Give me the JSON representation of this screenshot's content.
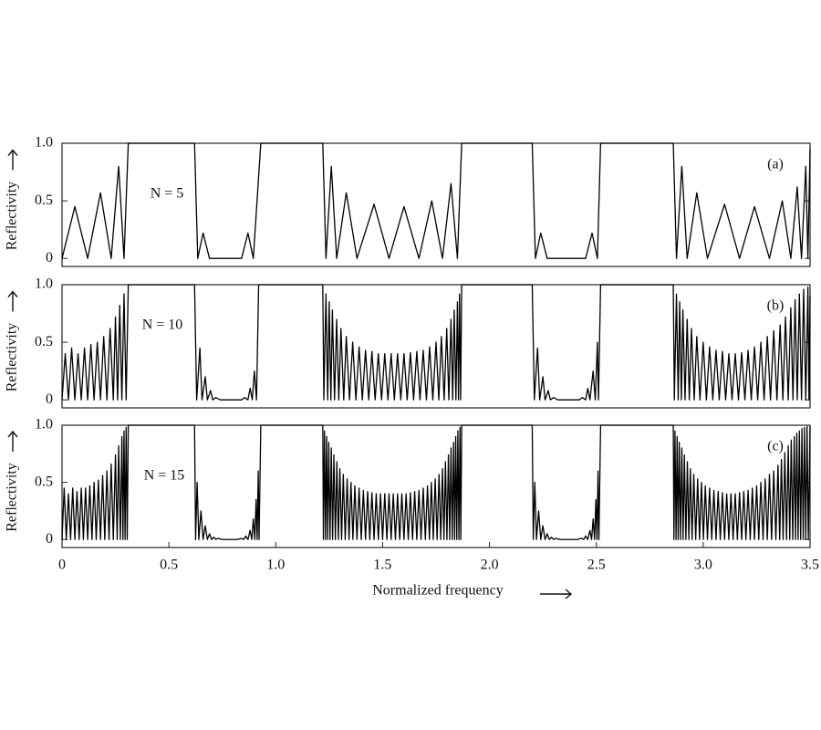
{
  "chart_data": [
    {
      "type": "line",
      "panel_label": "(a)",
      "annotation": "N = 5",
      "ylabel": "Reflectivity",
      "color": "#000000",
      "xlim": [
        0,
        3.5
      ],
      "ylim": [
        -0.07,
        1
      ],
      "yticks": [
        0,
        0.5,
        {
          "value": 1,
          "label": "1.0"
        }
      ],
      "x": [
        0,
        0.06,
        0.12,
        0.18,
        0.23,
        0.265,
        0.29,
        0.31,
        0.62,
        0.635,
        0.66,
        0.69,
        0.84,
        0.87,
        0.895,
        0.93,
        1.22,
        1.235,
        1.26,
        1.285,
        1.33,
        1.38,
        1.46,
        1.53,
        1.6,
        1.67,
        1.73,
        1.78,
        1.82,
        1.85,
        1.87,
        2.2,
        2.215,
        2.24,
        2.27,
        2.45,
        2.48,
        2.505,
        2.52,
        2.86,
        2.875,
        2.9,
        2.925,
        2.97,
        3.02,
        3.1,
        3.17,
        3.24,
        3.31,
        3.37,
        3.41,
        3.44,
        3.46,
        3.48,
        3.49,
        3.5
      ],
      "values": [
        0,
        0.45,
        0,
        0.57,
        0,
        0.8,
        0,
        1,
        1,
        0,
        0.22,
        0,
        0,
        0.22,
        0,
        1,
        1,
        0,
        0.8,
        0,
        0.57,
        0,
        0.47,
        0,
        0.45,
        0,
        0.5,
        0,
        0.65,
        0,
        1,
        1,
        0,
        0.22,
        0,
        0,
        0.22,
        0,
        1,
        1,
        0,
        0.8,
        0,
        0.57,
        0,
        0.47,
        0,
        0.45,
        0,
        0.5,
        0,
        0.62,
        0,
        0.8,
        0,
        0.95
      ]
    },
    {
      "type": "line",
      "panel_label": "(b)",
      "annotation": "N = 10",
      "ylabel": "Reflectivity",
      "color": "#000000",
      "xlim": [
        0,
        3.5
      ],
      "ylim": [
        -0.07,
        1
      ],
      "yticks": [
        0,
        0.5,
        {
          "value": 1,
          "label": "1.0"
        }
      ],
      "x": [
        0,
        0.015,
        0.03,
        0.045,
        0.06,
        0.075,
        0.09,
        0.105,
        0.12,
        0.135,
        0.15,
        0.165,
        0.18,
        0.195,
        0.21,
        0.225,
        0.24,
        0.25,
        0.26,
        0.27,
        0.28,
        0.29,
        0.3,
        0.31,
        0.62,
        0.63,
        0.645,
        0.655,
        0.67,
        0.68,
        0.695,
        0.705,
        0.72,
        0.74,
        0.84,
        0.855,
        0.87,
        0.88,
        0.89,
        0.9,
        0.91,
        0.92,
        1.22,
        1.225,
        1.235,
        1.243,
        1.25,
        1.258,
        1.265,
        1.275,
        1.285,
        1.295,
        1.305,
        1.318,
        1.33,
        1.345,
        1.36,
        1.375,
        1.39,
        1.405,
        1.42,
        1.435,
        1.45,
        1.465,
        1.48,
        1.495,
        1.51,
        1.525,
        1.54,
        1.555,
        1.57,
        1.585,
        1.6,
        1.615,
        1.63,
        1.645,
        1.66,
        1.675,
        1.69,
        1.705,
        1.72,
        1.735,
        1.75,
        1.763,
        1.775,
        1.788,
        1.8,
        1.81,
        1.82,
        1.828,
        1.835,
        1.843,
        1.85,
        1.855,
        1.86,
        1.865,
        1.87,
        2.2,
        2.21,
        2.225,
        2.235,
        2.25,
        2.26,
        2.275,
        2.285,
        2.3,
        2.32,
        2.42,
        2.435,
        2.45,
        2.46,
        2.47,
        2.485,
        2.495,
        2.505,
        2.51,
        2.52,
        2.86,
        2.865,
        2.875,
        2.883,
        2.89,
        2.898,
        2.905,
        2.915,
        2.925,
        2.935,
        2.945,
        2.958,
        2.97,
        2.985,
        3.0,
        3.015,
        3.03,
        3.045,
        3.06,
        3.075,
        3.09,
        3.105,
        3.12,
        3.135,
        3.15,
        3.165,
        3.18,
        3.195,
        3.21,
        3.225,
        3.24,
        3.255,
        3.27,
        3.285,
        3.3,
        3.315,
        3.33,
        3.345,
        3.36,
        3.373,
        3.385,
        3.398,
        3.41,
        3.42,
        3.43,
        3.44,
        3.45,
        3.46,
        3.47,
        3.48,
        3.49,
        3.495,
        3.5
      ],
      "values": [
        0,
        0.4,
        0,
        0.45,
        0,
        0.4,
        0,
        0.45,
        0,
        0.48,
        0,
        0.5,
        0,
        0.55,
        0,
        0.62,
        0,
        0.72,
        0,
        0.82,
        0,
        0.92,
        0,
        1,
        1,
        0,
        0.45,
        0,
        0.2,
        0,
        0.08,
        0,
        0.02,
        0,
        0,
        0.02,
        0,
        0.1,
        0,
        0.25,
        0,
        1,
        1,
        0,
        0.92,
        0,
        0.85,
        0,
        0.78,
        0,
        0.7,
        0,
        0.62,
        0,
        0.55,
        0,
        0.5,
        0,
        0.46,
        0,
        0.43,
        0,
        0.42,
        0,
        0.4,
        0,
        0.4,
        0,
        0.4,
        0,
        0.4,
        0,
        0.4,
        0,
        0.41,
        0,
        0.42,
        0,
        0.43,
        0,
        0.46,
        0,
        0.5,
        0,
        0.55,
        0,
        0.62,
        0,
        0.7,
        0,
        0.78,
        0,
        0.85,
        0,
        0.92,
        0,
        1,
        1,
        0,
        0.45,
        0,
        0.2,
        0,
        0.08,
        0,
        0.02,
        0,
        0,
        0.02,
        0,
        0.1,
        0,
        0.25,
        0,
        0.5,
        0,
        1,
        1,
        0,
        0.92,
        0,
        0.85,
        0,
        0.78,
        0,
        0.7,
        0,
        0.62,
        0,
        0.55,
        0,
        0.5,
        0,
        0.46,
        0,
        0.43,
        0,
        0.42,
        0,
        0.4,
        0,
        0.4,
        0,
        0.41,
        0,
        0.43,
        0,
        0.46,
        0,
        0.5,
        0,
        0.55,
        0,
        0.6,
        0,
        0.65,
        0,
        0.72,
        0,
        0.8,
        0,
        0.87,
        0,
        0.92,
        0,
        0.96,
        0,
        0.98,
        0,
        0.9
      ]
    },
    {
      "type": "line",
      "panel_label": "(c)",
      "annotation": "N = 15",
      "ylabel": "Reflectivity",
      "color": "#000000",
      "xlabel": "Normalized frequency",
      "xlim": [
        0,
        3.5
      ],
      "ylim": [
        -0.07,
        1
      ],
      "yticks": [
        0,
        0.5,
        {
          "value": 1,
          "label": "1.0"
        }
      ],
      "xticks": [
        0,
        0.5,
        {
          "value": 1,
          "label": "1.0"
        },
        1.5,
        {
          "value": 2,
          "label": "2.0"
        },
        2.5,
        {
          "value": 3,
          "label": "3.0"
        },
        3.5
      ],
      "x": [
        0,
        0.01,
        0.02,
        0.03,
        0.04,
        0.05,
        0.06,
        0.07,
        0.08,
        0.09,
        0.1,
        0.11,
        0.12,
        0.13,
        0.14,
        0.15,
        0.16,
        0.17,
        0.18,
        0.19,
        0.2,
        0.21,
        0.22,
        0.23,
        0.24,
        0.25,
        0.258,
        0.265,
        0.273,
        0.28,
        0.285,
        0.29,
        0.295,
        0.3,
        0.305,
        0.31,
        0.62,
        0.625,
        0.632,
        0.64,
        0.65,
        0.66,
        0.67,
        0.68,
        0.69,
        0.7,
        0.71,
        0.72,
        0.73,
        0.75,
        0.82,
        0.84,
        0.85,
        0.86,
        0.87,
        0.88,
        0.888,
        0.895,
        0.902,
        0.908,
        0.913,
        0.918,
        0.922,
        0.93,
        1.22,
        1.223,
        1.228,
        1.233,
        1.238,
        1.243,
        1.248,
        1.254,
        1.26,
        1.266,
        1.272,
        1.279,
        1.286,
        1.293,
        1.3,
        1.308,
        1.316,
        1.325,
        1.334,
        1.343,
        1.352,
        1.361,
        1.37,
        1.38,
        1.39,
        1.4,
        1.41,
        1.42,
        1.43,
        1.44,
        1.45,
        1.46,
        1.47,
        1.48,
        1.49,
        1.5,
        1.51,
        1.52,
        1.53,
        1.54,
        1.55,
        1.56,
        1.57,
        1.58,
        1.59,
        1.6,
        1.61,
        1.62,
        1.63,
        1.64,
        1.65,
        1.66,
        1.67,
        1.68,
        1.69,
        1.7,
        1.71,
        1.719,
        1.728,
        1.737,
        1.746,
        1.755,
        1.764,
        1.772,
        1.78,
        1.787,
        1.794,
        1.801,
        1.808,
        1.814,
        1.82,
        1.826,
        1.832,
        1.837,
        1.842,
        1.847,
        1.852,
        1.857,
        1.862,
        1.866,
        1.87,
        2.2,
        2.205,
        2.212,
        2.22,
        2.23,
        2.24,
        2.25,
        2.26,
        2.27,
        2.28,
        2.29,
        2.3,
        2.31,
        2.33,
        2.41,
        2.43,
        2.44,
        2.45,
        2.46,
        2.47,
        2.478,
        2.485,
        2.492,
        2.498,
        2.503,
        2.508,
        2.512,
        2.52,
        2.86,
        2.863,
        2.868,
        2.873,
        2.878,
        2.883,
        2.888,
        2.894,
        2.9,
        2.906,
        2.912,
        2.919,
        2.926,
        2.933,
        2.94,
        2.948,
        2.956,
        2.965,
        2.974,
        2.983,
        2.992,
        3.001,
        3.01,
        3.02,
        3.03,
        3.04,
        3.05,
        3.06,
        3.07,
        3.08,
        3.09,
        3.1,
        3.11,
        3.12,
        3.13,
        3.14,
        3.15,
        3.16,
        3.17,
        3.18,
        3.19,
        3.2,
        3.21,
        3.22,
        3.23,
        3.24,
        3.25,
        3.26,
        3.27,
        3.28,
        3.29,
        3.3,
        3.31,
        3.32,
        3.33,
        3.34,
        3.35,
        3.358,
        3.366,
        3.374,
        3.382,
        3.39,
        3.398,
        3.405,
        3.412,
        3.419,
        3.426,
        3.432,
        3.438,
        3.444,
        3.45,
        3.456,
        3.462,
        3.468,
        3.474,
        3.48,
        3.486,
        3.492,
        3.5
      ],
      "values": [
        0,
        0.45,
        0,
        0.4,
        0,
        0.45,
        0,
        0.42,
        0,
        0.45,
        0,
        0.45,
        0,
        0.47,
        0,
        0.5,
        0,
        0.52,
        0,
        0.56,
        0,
        0.6,
        0,
        0.66,
        0,
        0.74,
        0,
        0.82,
        0,
        0.9,
        0,
        0.95,
        0,
        0.98,
        0,
        1,
        1,
        0,
        0.5,
        0,
        0.25,
        0,
        0.12,
        0,
        0.05,
        0,
        0.02,
        0,
        0.01,
        0,
        0,
        0.01,
        0,
        0.03,
        0,
        0.08,
        0,
        0.18,
        0,
        0.35,
        0,
        0.6,
        0,
        1,
        1,
        0,
        0.95,
        0,
        0.9,
        0,
        0.85,
        0,
        0.8,
        0,
        0.74,
        0,
        0.68,
        0,
        0.62,
        0,
        0.57,
        0,
        0.53,
        0,
        0.5,
        0,
        0.47,
        0,
        0.45,
        0,
        0.43,
        0,
        0.42,
        0,
        0.41,
        0,
        0.4,
        0,
        0.4,
        0,
        0.4,
        0,
        0.4,
        0,
        0.4,
        0,
        0.4,
        0,
        0.4,
        0,
        0.4,
        0,
        0.41,
        0,
        0.42,
        0,
        0.43,
        0,
        0.45,
        0,
        0.47,
        0,
        0.5,
        0,
        0.53,
        0,
        0.57,
        0,
        0.62,
        0,
        0.68,
        0,
        0.74,
        0,
        0.8,
        0,
        0.85,
        0,
        0.9,
        0,
        0.95,
        0,
        0.98,
        0,
        1,
        1,
        0,
        0.5,
        0,
        0.25,
        0,
        0.12,
        0,
        0.05,
        0,
        0.02,
        0,
        0.01,
        0,
        0,
        0.01,
        0,
        0.03,
        0,
        0.08,
        0,
        0.18,
        0,
        0.35,
        0,
        0.6,
        0,
        1,
        1,
        0,
        0.95,
        0,
        0.9,
        0,
        0.85,
        0,
        0.8,
        0,
        0.74,
        0,
        0.68,
        0,
        0.62,
        0,
        0.57,
        0,
        0.53,
        0,
        0.5,
        0,
        0.47,
        0,
        0.45,
        0,
        0.43,
        0,
        0.42,
        0,
        0.41,
        0,
        0.4,
        0,
        0.4,
        0,
        0.4,
        0,
        0.41,
        0,
        0.42,
        0,
        0.43,
        0,
        0.45,
        0,
        0.47,
        0,
        0.5,
        0,
        0.53,
        0,
        0.57,
        0,
        0.6,
        0,
        0.65,
        0,
        0.7,
        0,
        0.76,
        0,
        0.82,
        0,
        0.87,
        0,
        0.9,
        0,
        0.93,
        0,
        0.95,
        0,
        0.97,
        0,
        0.98,
        0,
        0.99,
        0,
        0.99
      ]
    }
  ]
}
